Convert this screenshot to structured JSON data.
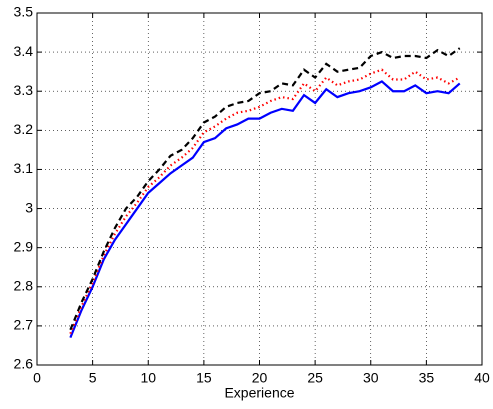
{
  "chart_data": {
    "type": "line",
    "x_label": "Experience",
    "x": [
      3,
      4,
      5,
      6,
      7,
      8,
      9,
      10,
      11,
      12,
      13,
      14,
      15,
      16,
      17,
      18,
      19,
      20,
      21,
      22,
      23,
      24,
      25,
      26,
      27,
      28,
      29,
      30,
      31,
      32,
      33,
      34,
      35,
      36,
      37,
      38
    ],
    "series": [
      {
        "color": "#0000ff",
        "line_style": "solid",
        "values": [
          2.67,
          2.74,
          2.8,
          2.87,
          2.92,
          2.96,
          3.0,
          3.04,
          3.065,
          3.09,
          3.11,
          3.13,
          3.17,
          3.18,
          3.205,
          3.215,
          3.23,
          3.23,
          3.245,
          3.255,
          3.25,
          3.29,
          3.27,
          3.305,
          3.285,
          3.295,
          3.3,
          3.31,
          3.325,
          3.3,
          3.3,
          3.315,
          3.295,
          3.3,
          3.295,
          3.32
        ]
      },
      {
        "color": "#ff0000",
        "line_style": "dotted",
        "values": [
          2.68,
          2.75,
          2.81,
          2.88,
          2.935,
          2.98,
          3.015,
          3.055,
          3.08,
          3.11,
          3.13,
          3.155,
          3.195,
          3.21,
          3.23,
          3.245,
          3.25,
          3.26,
          3.275,
          3.285,
          3.28,
          3.32,
          3.3,
          3.335,
          3.315,
          3.325,
          3.33,
          3.345,
          3.355,
          3.33,
          3.33,
          3.35,
          3.33,
          3.335,
          3.32,
          3.335
        ]
      },
      {
        "color": "#000000",
        "line_style": "dashed",
        "values": [
          2.69,
          2.76,
          2.82,
          2.89,
          2.95,
          3.0,
          3.03,
          3.07,
          3.1,
          3.135,
          3.15,
          3.18,
          3.22,
          3.235,
          3.26,
          3.27,
          3.275,
          3.295,
          3.3,
          3.32,
          3.315,
          3.355,
          3.335,
          3.37,
          3.35,
          3.355,
          3.36,
          3.39,
          3.4,
          3.385,
          3.39,
          3.39,
          3.385,
          3.405,
          3.39,
          3.41
        ]
      }
    ],
    "xlim": [
      0,
      40
    ],
    "xticks": [
      0,
      5,
      10,
      15,
      20,
      25,
      30,
      35,
      40
    ],
    "ylim": [
      2.6,
      3.5
    ],
    "yticks": [
      2.6,
      2.7,
      2.8,
      2.9,
      3,
      3.1,
      3.2,
      3.3,
      3.4,
      3.5
    ],
    "grid": true
  }
}
